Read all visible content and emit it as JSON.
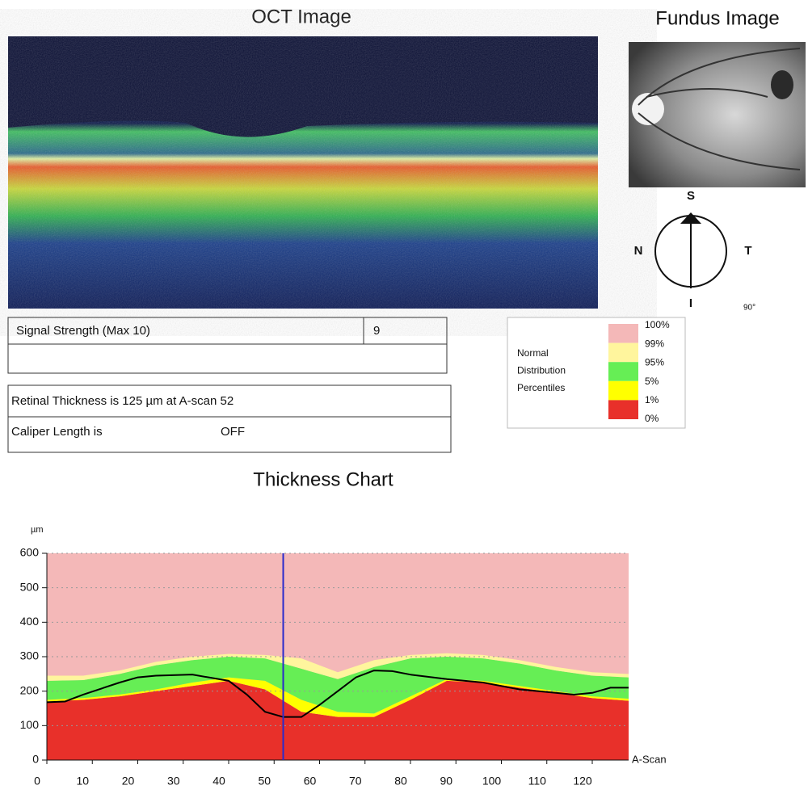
{
  "oct": {
    "title": "OCT Image"
  },
  "fundus": {
    "title": "Fundus Image",
    "compass": {
      "top": "S",
      "left": "N",
      "right": "T",
      "bottom": "I",
      "angle": "90°"
    }
  },
  "signal": {
    "label": "Signal Strength (Max 10)",
    "value": 9
  },
  "legend": {
    "title": [
      "Normal",
      "Distribution",
      "Percentiles"
    ],
    "labels": [
      "100%",
      "99%",
      "95%",
      "5%",
      "1%",
      "0%"
    ],
    "colors": [
      "#f4b8b8",
      "#fff59d",
      "#66ee55",
      "#ffff00",
      "#e8302a"
    ]
  },
  "measurement": {
    "thickness_text": "Retinal Thickness is 125 µm at A-scan 52",
    "caliper_label": "Caliper Length is",
    "caliper_value": "OFF"
  },
  "chart_title": "Thickness Chart",
  "chart_data": {
    "type": "area",
    "y_label": "µm",
    "x_label": "A-Scan",
    "xlim": [
      0,
      128
    ],
    "ylim": [
      0,
      600
    ],
    "xticks": [
      0,
      10,
      20,
      30,
      40,
      50,
      60,
      70,
      80,
      90,
      100,
      110,
      120
    ],
    "yticks": [
      0,
      100,
      200,
      300,
      400,
      500,
      600
    ],
    "grid": true,
    "background_color": "#f4b8b8",
    "x": [
      0,
      8,
      16,
      24,
      32,
      40,
      48,
      56,
      64,
      72,
      80,
      88,
      96,
      104,
      112,
      120,
      128
    ],
    "bands": [
      {
        "color": "#e8302a",
        "values": [
          170,
          175,
          185,
          200,
          215,
          230,
          205,
          140,
          125,
          125,
          175,
          230,
          225,
          210,
          195,
          180,
          172
        ]
      },
      {
        "color": "#ffff00",
        "values": [
          175,
          180,
          190,
          205,
          225,
          240,
          230,
          175,
          140,
          135,
          185,
          235,
          230,
          215,
          200,
          185,
          178
        ]
      },
      {
        "color": "#66ee55",
        "values": [
          230,
          232,
          250,
          275,
          290,
          300,
          295,
          265,
          235,
          270,
          295,
          300,
          295,
          280,
          260,
          245,
          240
        ]
      },
      {
        "color": "#fff59d",
        "values": [
          245,
          245,
          260,
          285,
          300,
          308,
          305,
          295,
          255,
          290,
          305,
          310,
          305,
          290,
          270,
          255,
          250
        ]
      }
    ],
    "thickness": {
      "color": "#000000",
      "x": [
        0,
        4,
        8,
        16,
        20,
        24,
        32,
        40,
        44,
        48,
        52,
        56,
        60,
        64,
        68,
        72,
        76,
        80,
        88,
        96,
        104,
        112,
        116,
        120,
        124,
        128
      ],
      "values": [
        168,
        170,
        190,
        225,
        240,
        245,
        248,
        230,
        190,
        140,
        125,
        125,
        160,
        200,
        240,
        260,
        258,
        248,
        235,
        225,
        205,
        195,
        190,
        195,
        210,
        210
      ]
    },
    "cursor": {
      "value": 52,
      "color": "#2a2acc"
    }
  }
}
